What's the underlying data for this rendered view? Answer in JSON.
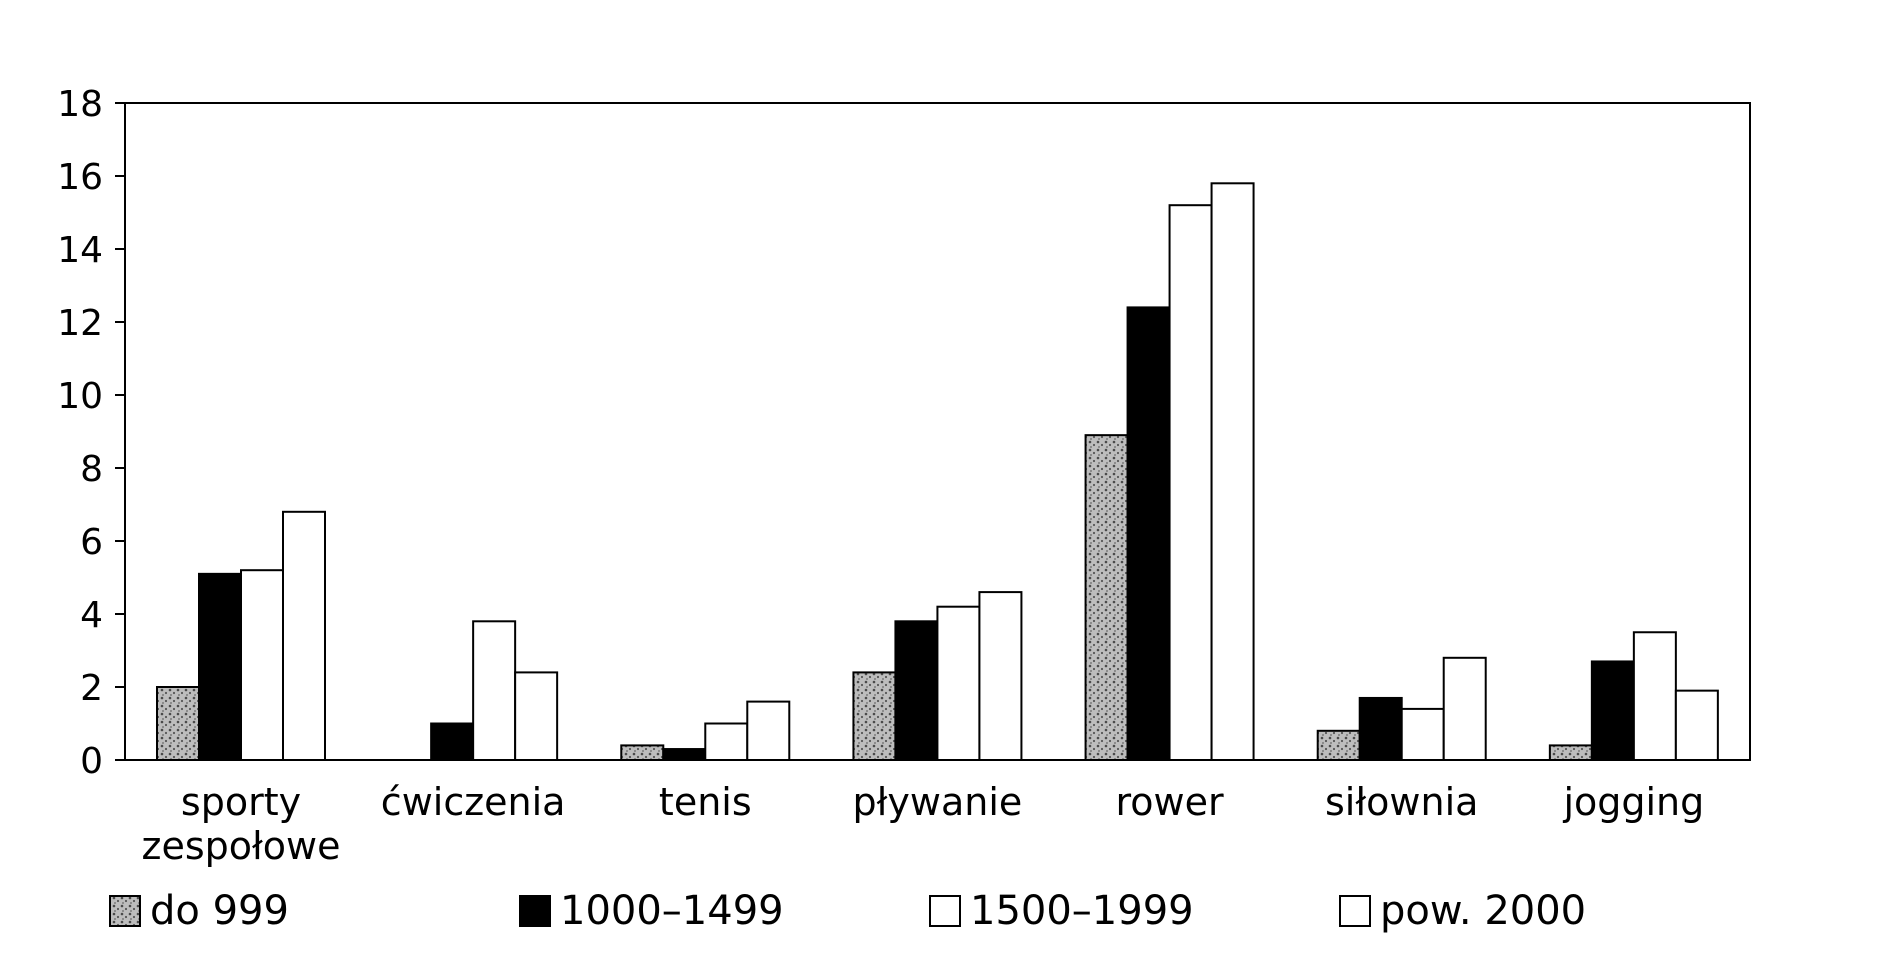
{
  "chart_data": {
    "type": "bar",
    "categories": [
      [
        "sporty",
        "zespołowe"
      ],
      [
        "ćwiczenia"
      ],
      [
        "tenis"
      ],
      [
        "pływanie"
      ],
      [
        "rower"
      ],
      [
        "siłownia"
      ],
      [
        "jogging"
      ]
    ],
    "series": [
      {
        "name": "do 999",
        "values": [
          2.0,
          0,
          0.4,
          2.4,
          8.9,
          0.8,
          0.4
        ],
        "fill": "#a8a8a8",
        "pattern": "stipple"
      },
      {
        "name": "1000–1499",
        "values": [
          5.1,
          1.0,
          0.3,
          3.8,
          12.4,
          1.7,
          2.7
        ],
        "fill": "#000000",
        "pattern": "solid"
      },
      {
        "name": "1500–1999",
        "values": [
          5.2,
          3.8,
          1.0,
          4.2,
          15.2,
          1.4,
          3.5
        ],
        "fill": "#ffffff",
        "pattern": "none"
      },
      {
        "name": "pow. 2000",
        "values": [
          6.8,
          2.4,
          1.6,
          4.6,
          15.8,
          2.8,
          1.9
        ],
        "fill": "#ffffff",
        "pattern": "none"
      }
    ],
    "ylim": [
      0,
      18
    ],
    "yticks": [
      0,
      2,
      4,
      6,
      8,
      10,
      12,
      14,
      16,
      18
    ],
    "title": "",
    "xlabel": "",
    "ylabel": "",
    "grid": false,
    "legend_position": "bottom"
  }
}
